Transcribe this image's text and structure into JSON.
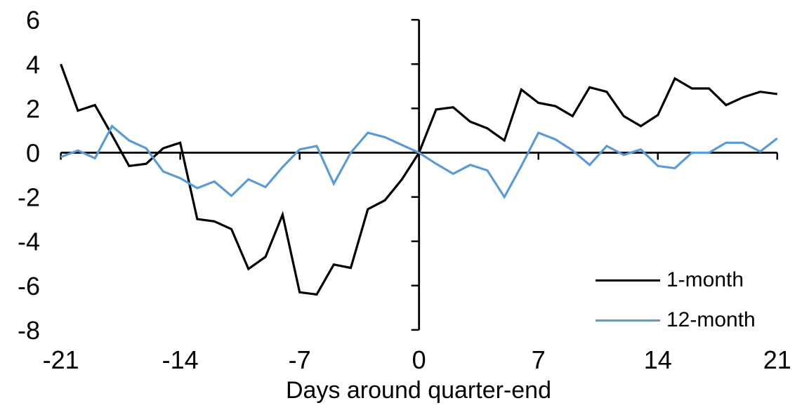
{
  "chart_data": {
    "type": "line",
    "title": "",
    "xlabel": "Days around quarter-end",
    "ylabel": "",
    "xlim": [
      -21,
      21
    ],
    "ylim": [
      -8,
      6
    ],
    "grid": false,
    "legend_position": "inside-lower-right",
    "x_ticks": [
      -21,
      -14,
      -7,
      0,
      7,
      14,
      21
    ],
    "x_tick_labels": [
      "-21",
      "-14",
      "-7",
      "0",
      "7",
      "14",
      "21"
    ],
    "y_ticks": [
      6,
      4,
      2,
      0,
      -2,
      -4,
      -6,
      -8
    ],
    "y_tick_labels": [
      "6",
      "4",
      "2",
      "0",
      "-2",
      "-4",
      "-6",
      "-8"
    ],
    "x": [
      -21,
      -20,
      -19,
      -18,
      -17,
      -16,
      -15,
      -14,
      -13,
      -12,
      -11,
      -10,
      -9,
      -8,
      -7,
      -6,
      -5,
      -4,
      -3,
      -2,
      -1,
      0,
      1,
      2,
      3,
      4,
      5,
      6,
      7,
      8,
      9,
      10,
      11,
      12,
      13,
      14,
      15,
      16,
      17,
      18,
      19,
      20,
      21
    ],
    "series": [
      {
        "name": "1-month",
        "color": "#000000",
        "values": [
          4.0,
          1.9,
          2.15,
          0.8,
          -0.6,
          -0.5,
          0.2,
          0.45,
          -3.0,
          -3.1,
          -3.45,
          -5.25,
          -4.7,
          -2.8,
          -6.3,
          -6.4,
          -5.05,
          -5.2,
          -2.55,
          -2.15,
          -1.2,
          0.0,
          1.95,
          2.05,
          1.4,
          1.1,
          0.55,
          2.85,
          2.25,
          2.1,
          1.65,
          2.95,
          2.75,
          1.65,
          1.2,
          1.7,
          3.35,
          2.9,
          2.9,
          2.15,
          2.5,
          2.75,
          2.65
        ]
      },
      {
        "name": "12-month",
        "color": "#5B9BD5",
        "values": [
          -0.2,
          0.1,
          -0.25,
          1.2,
          0.55,
          0.2,
          -0.85,
          -1.15,
          -1.6,
          -1.3,
          -1.95,
          -1.2,
          -1.55,
          -0.65,
          0.15,
          0.3,
          -1.4,
          0.0,
          0.9,
          0.7,
          0.35,
          0.0,
          -0.5,
          -0.95,
          -0.55,
          -0.8,
          -2.0,
          -0.6,
          0.9,
          0.6,
          0.1,
          -0.55,
          0.3,
          -0.1,
          0.15,
          -0.6,
          -0.7,
          0.0,
          0.0,
          0.45,
          0.45,
          0.05,
          0.65
        ]
      }
    ]
  },
  "legend": {
    "items": [
      {
        "label": "1-month",
        "color": "#000000"
      },
      {
        "label": "12-month",
        "color": "#5B9BD5"
      }
    ]
  },
  "colors": {
    "background": "#FFFFFF",
    "axis": "#000000",
    "series_1_month": "#000000",
    "series_12_month": "#5B9BD5"
  }
}
